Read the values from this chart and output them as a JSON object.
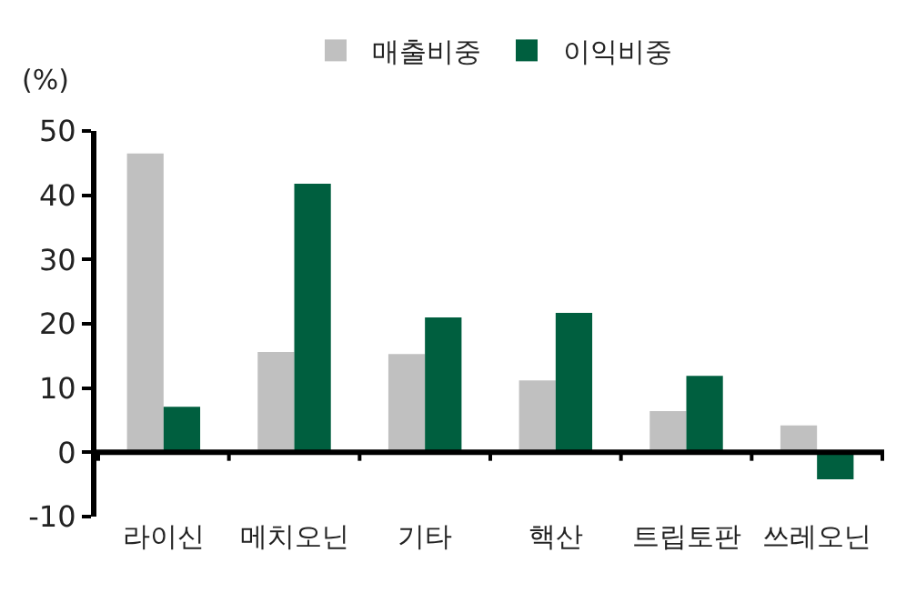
{
  "chart_data": {
    "type": "bar",
    "ylabel": "(%)",
    "categories": [
      "라이신",
      "메치오닌",
      "기타",
      "핵산",
      "트립토판",
      "쓰레오닌"
    ],
    "series": [
      {
        "name": "매출비중",
        "color": "#c0c0c0",
        "values": [
          46.5,
          15.6,
          15.3,
          11.2,
          6.4,
          4.2
        ]
      },
      {
        "name": "이익비중",
        "color": "#005f3f",
        "values": [
          7.1,
          41.8,
          21.0,
          21.7,
          11.9,
          -4.2
        ]
      }
    ],
    "ylim": [
      -10,
      50
    ],
    "yticks": [
      -10,
      0,
      10,
      20,
      30,
      40,
      50
    ],
    "grid": false,
    "legend": "top"
  }
}
